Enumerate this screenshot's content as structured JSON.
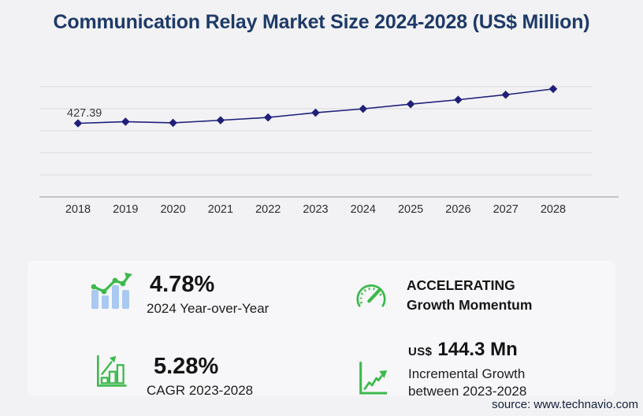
{
  "title": "Communication Relay Market Size 2024-2028 (US$ Million)",
  "source": "source: www.technavio.com",
  "chart_data": {
    "type": "line",
    "x": [
      2018,
      2019,
      2020,
      2021,
      2022,
      2023,
      2024,
      2025,
      2026,
      2027,
      2028
    ],
    "series": [
      {
        "name": "Market size (US$ Million)",
        "values": [
          427.39,
          437.2,
          430.1,
          445.9,
          463.2,
          491.8,
          515.3,
          543.8,
          570.3,
          600.8,
          636.1
        ]
      }
    ],
    "first_point_label": "427.39",
    "title": "Communication Relay Market Size 2024-2028 (US$ Million)",
    "xlabel": "",
    "ylabel": "",
    "ylim": [
      0,
      650
    ],
    "grid": "horizontal",
    "gridline_count": 6,
    "legend": "none",
    "line_color": "#20207b",
    "marker": "diamond"
  },
  "stats": [
    {
      "icon": "bar-chart-trend-icon",
      "value": "4.78%",
      "label": "2024 Year-over-Year"
    },
    {
      "icon": "bar-growth-icon",
      "value": "5.28%",
      "label": "CAGR 2023-2028"
    },
    {
      "icon": "speedometer-icon",
      "line1": "ACCELERATING",
      "line2": "Growth Momentum"
    },
    {
      "icon": "line-growth-icon",
      "currency": "US$",
      "value": "144.3 Mn",
      "label_line1": "Incremental Growth",
      "label_line2": "between 2023-2028"
    }
  ],
  "colors": {
    "background": "#f2f2f4",
    "panel": "#f7f7f9",
    "accent_green": "#3cb94a",
    "bar_blue": "#a9c9f2",
    "title_navy": "#1e3a68",
    "line_navy": "#20207b"
  }
}
